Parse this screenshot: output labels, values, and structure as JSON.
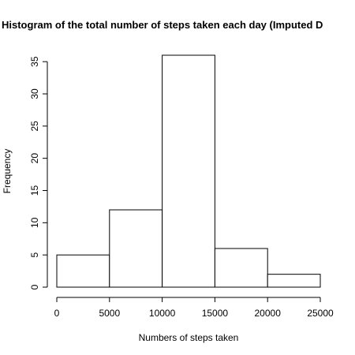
{
  "chart_data": {
    "type": "bar",
    "title": "Histogram of the total number of steps taken each day (Imputed D",
    "xlabel": "Numbers of steps taken",
    "ylabel": "Frequency",
    "bins": [
      {
        "from": 0,
        "to": 5000,
        "count": 5
      },
      {
        "from": 5000,
        "to": 10000,
        "count": 12
      },
      {
        "from": 10000,
        "to": 15000,
        "count": 36
      },
      {
        "from": 15000,
        "to": 20000,
        "count": 6
      },
      {
        "from": 20000,
        "to": 25000,
        "count": 2
      }
    ],
    "xlim": [
      0,
      25000
    ],
    "ylim": [
      0,
      36
    ],
    "x_ticks": [
      "0",
      "5000",
      "10000",
      "15000",
      "20000",
      "25000"
    ],
    "y_ticks": [
      "0",
      "5",
      "10",
      "15",
      "20",
      "25",
      "30",
      "35"
    ],
    "grid": false
  }
}
